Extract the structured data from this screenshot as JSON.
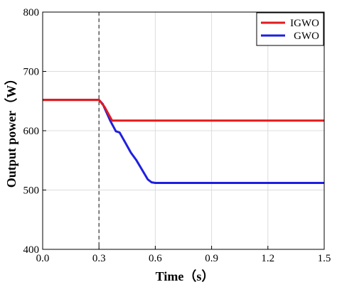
{
  "chart_data": {
    "type": "line",
    "title": "",
    "xlabel": "Time（s）",
    "ylabel": "Output power（W）",
    "xlim": [
      0.0,
      1.5
    ],
    "ylim": [
      400,
      800
    ],
    "xticks": [
      "0.0",
      "0.3",
      "0.6",
      "0.9",
      "1.2",
      "1.5"
    ],
    "yticks": [
      "400",
      "500",
      "600",
      "700",
      "800"
    ],
    "grid": true,
    "legend_position": "top-right",
    "vertical_marker_x": 0.3,
    "series": [
      {
        "name": "IGWO",
        "color": "#e31a1c",
        "x": [
          0.0,
          0.3,
          0.33,
          0.37,
          1.5
        ],
        "y": [
          652,
          652,
          640,
          617,
          617
        ]
      },
      {
        "name": "GWO",
        "color": "#1f1fe0",
        "x": [
          0.0,
          0.3,
          0.32,
          0.36,
          0.39,
          0.41,
          0.44,
          0.47,
          0.5,
          0.53,
          0.56,
          0.58,
          0.6,
          1.5
        ],
        "y": [
          652,
          652,
          645,
          617,
          599,
          597,
          580,
          563,
          550,
          534,
          518,
          513,
          512,
          512
        ]
      }
    ]
  }
}
